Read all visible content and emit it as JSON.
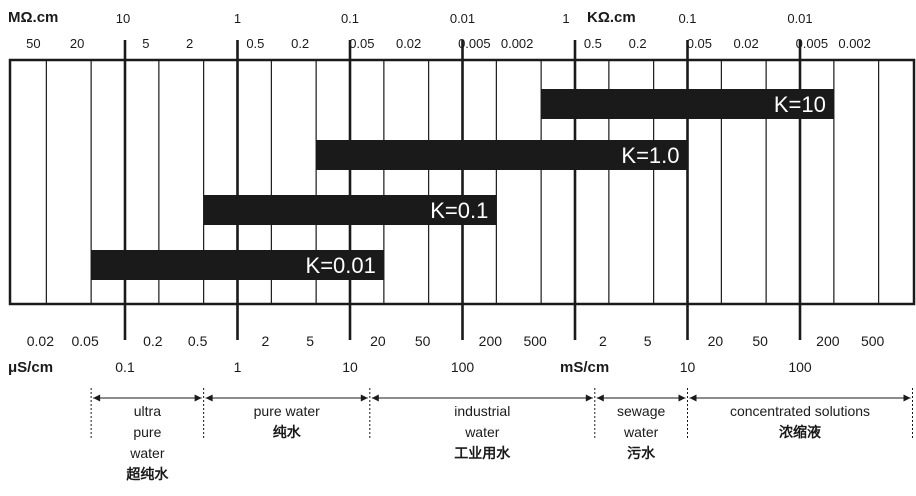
{
  "colors": {
    "background": "#ffffff",
    "ink": "#1a1a1a",
    "bar": "#1a1a1a",
    "bar_text": "#ffffff"
  },
  "units": {
    "resistivity_left": "MΩ.cm",
    "resistivity_right": "KΩ.cm",
    "conductivity_left": "μS/cm",
    "conductivity_right": "mS/cm"
  },
  "top_major_labels": [
    "10",
    "1",
    "0.1",
    "0.01",
    "1",
    "0.1",
    "0.01"
  ],
  "top_minor_labels": [
    "50",
    "20",
    "5",
    "2",
    "0.5",
    "0.2",
    "0.05",
    "0.02",
    "0.005",
    "0.002",
    "0.5",
    "0.2",
    "0.05",
    "0.02",
    "0.005",
    "0.002"
  ],
  "bottom_minor_labels": [
    "0.02",
    "0.05",
    "0.2",
    "0.5",
    "2",
    "5",
    "20",
    "50",
    "200",
    "500",
    "2",
    "5",
    "20",
    "50",
    "200",
    "500"
  ],
  "bottom_major_labels": [
    "0.1",
    "1",
    "10",
    "100",
    "10",
    "100"
  ],
  "chart_data": {
    "type": "bar",
    "x_scale": "log",
    "x_unit": "μS/cm",
    "xlim": [
      0.0115,
      1150000
    ],
    "grid": true,
    "series": [
      {
        "label": "K=10",
        "range": [
          500,
          200000
        ]
      },
      {
        "label": "K=1.0",
        "range": [
          5,
          10000
        ]
      },
      {
        "label": "K=0.1",
        "range": [
          0.5,
          200
        ]
      },
      {
        "label": "K=0.01",
        "range": [
          0.05,
          20
        ]
      }
    ]
  },
  "water_categories": [
    {
      "lines": [
        "ultra",
        "pure",
        "water"
      ],
      "cn": "超纯水"
    },
    {
      "lines": [
        "pure water"
      ],
      "cn": "纯水"
    },
    {
      "lines": [
        "industrial",
        "water"
      ],
      "cn": "工业用水"
    },
    {
      "lines": [
        "sewage",
        "water"
      ],
      "cn": "污水"
    },
    {
      "lines": [
        "concentrated solutions"
      ],
      "cn": "浓缩液"
    }
  ]
}
